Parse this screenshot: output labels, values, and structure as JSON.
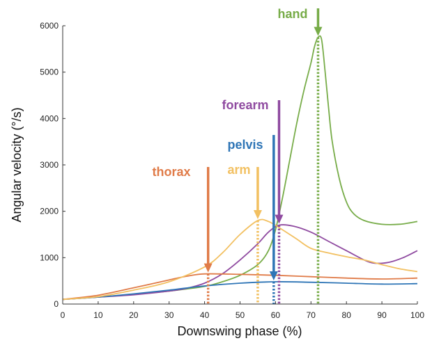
{
  "chart_data": {
    "type": "line",
    "title": "",
    "xlabel": "Downswing phase (%)",
    "ylabel": "Angular velocity (°/s)",
    "xlim": [
      0,
      100
    ],
    "ylim": [
      0,
      6000
    ],
    "xticks": [
      0,
      10,
      20,
      30,
      40,
      50,
      60,
      70,
      80,
      90,
      100
    ],
    "yticks": [
      0,
      1000,
      2000,
      3000,
      4000,
      5000,
      6000
    ],
    "grid": false,
    "legend": "none",
    "series": [
      {
        "name": "hand",
        "color": "#77ac48",
        "points": [
          [
            0,
            100
          ],
          [
            10,
            150
          ],
          [
            20,
            210
          ],
          [
            30,
            280
          ],
          [
            40,
            380
          ],
          [
            45,
            480
          ],
          [
            50,
            620
          ],
          [
            55,
            850
          ],
          [
            58,
            1150
          ],
          [
            60,
            1600
          ],
          [
            62,
            2300
          ],
          [
            64,
            3100
          ],
          [
            66,
            3900
          ],
          [
            68,
            4600
          ],
          [
            70,
            5200
          ],
          [
            71,
            5550
          ],
          [
            72,
            5750
          ],
          [
            73,
            5700
          ],
          [
            74,
            5000
          ],
          [
            75,
            4200
          ],
          [
            76,
            3500
          ],
          [
            78,
            2700
          ],
          [
            80,
            2200
          ],
          [
            82,
            1950
          ],
          [
            85,
            1800
          ],
          [
            90,
            1720
          ],
          [
            95,
            1720
          ],
          [
            100,
            1780
          ]
        ]
      },
      {
        "name": "forearm",
        "color": "#8f4aa0",
        "points": [
          [
            0,
            100
          ],
          [
            10,
            150
          ],
          [
            20,
            200
          ],
          [
            30,
            280
          ],
          [
            35,
            340
          ],
          [
            40,
            450
          ],
          [
            45,
            650
          ],
          [
            50,
            950
          ],
          [
            55,
            1300
          ],
          [
            58,
            1550
          ],
          [
            61,
            1700
          ],
          [
            65,
            1680
          ],
          [
            70,
            1550
          ],
          [
            75,
            1350
          ],
          [
            80,
            1150
          ],
          [
            85,
            950
          ],
          [
            88,
            880
          ],
          [
            92,
            900
          ],
          [
            96,
            1000
          ],
          [
            100,
            1150
          ]
        ]
      },
      {
        "name": "pelvis",
        "color": "#2e75b6",
        "points": [
          [
            0,
            100
          ],
          [
            10,
            150
          ],
          [
            20,
            220
          ],
          [
            30,
            300
          ],
          [
            40,
            390
          ],
          [
            50,
            450
          ],
          [
            60,
            480
          ],
          [
            70,
            470
          ],
          [
            80,
            450
          ],
          [
            90,
            430
          ],
          [
            100,
            440
          ]
        ]
      },
      {
        "name": "thorax",
        "color": "#e07b48",
        "points": [
          [
            0,
            100
          ],
          [
            10,
            190
          ],
          [
            20,
            350
          ],
          [
            30,
            520
          ],
          [
            35,
            600
          ],
          [
            40,
            650
          ],
          [
            50,
            640
          ],
          [
            60,
            620
          ],
          [
            70,
            590
          ],
          [
            80,
            560
          ],
          [
            90,
            540
          ],
          [
            100,
            560
          ]
        ]
      },
      {
        "name": "arm",
        "color": "#f2c061",
        "points": [
          [
            0,
            100
          ],
          [
            10,
            160
          ],
          [
            20,
            300
          ],
          [
            30,
            480
          ],
          [
            40,
            800
          ],
          [
            45,
            1100
          ],
          [
            50,
            1500
          ],
          [
            55,
            1800
          ],
          [
            58,
            1780
          ],
          [
            62,
            1600
          ],
          [
            66,
            1400
          ],
          [
            70,
            1200
          ],
          [
            75,
            1100
          ],
          [
            80,
            1020
          ],
          [
            85,
            950
          ],
          [
            90,
            850
          ],
          [
            95,
            760
          ],
          [
            100,
            700
          ]
        ]
      }
    ],
    "annotations": [
      {
        "label": "hand",
        "series": "hand",
        "x": 72,
        "y": 5750,
        "color": "#77ac48"
      },
      {
        "label": "forearm",
        "series": "forearm",
        "x": 61,
        "y": 1700,
        "color": "#8f4aa0"
      },
      {
        "label": "pelvis",
        "series": "pelvis",
        "x": 59.5,
        "y": 480,
        "color": "#2e75b6"
      },
      {
        "label": "thorax",
        "series": "thorax",
        "x": 41,
        "y": 650,
        "color": "#e07b48"
      },
      {
        "label": "arm",
        "series": "arm",
        "x": 55,
        "y": 1800,
        "color": "#f2c061"
      }
    ]
  }
}
